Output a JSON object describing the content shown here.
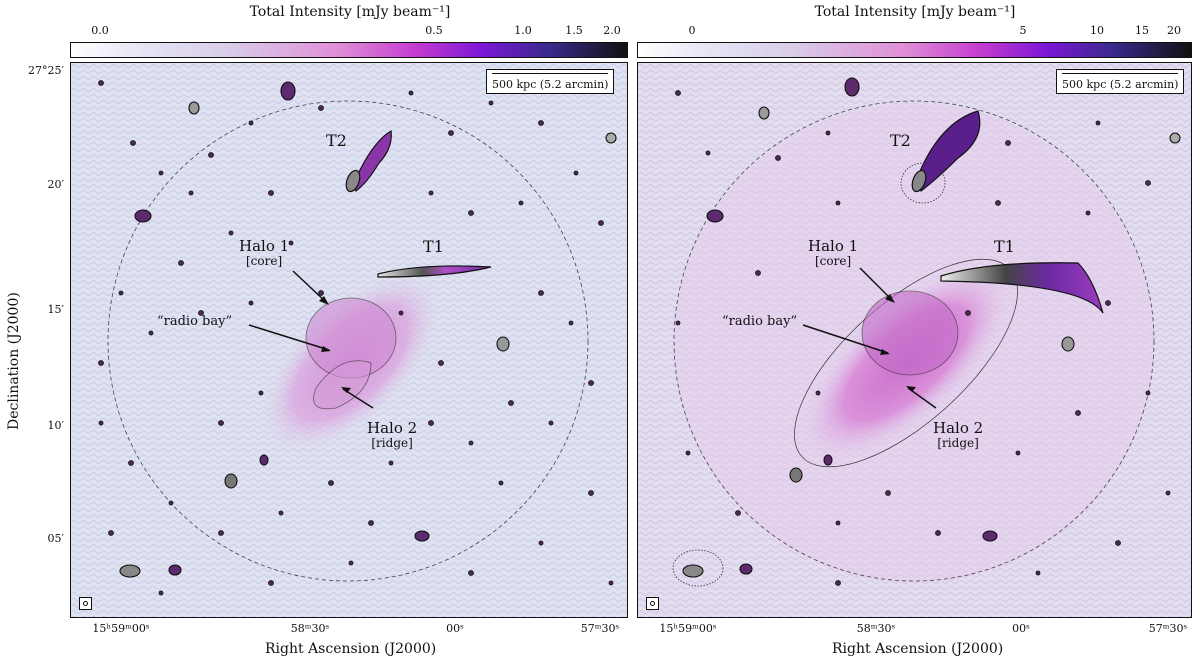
{
  "left_panel": {
    "colorbar_title": "Total Intensity [mJy beam⁻¹]",
    "colorbar_ticks": [
      "0.0",
      "0.5",
      "1.0",
      "1.5",
      "2.0"
    ],
    "scale_label": "500 kpc (5.2 arcmin)",
    "annotations": {
      "t2": "T2",
      "t1": "T1",
      "halo1": "Halo 1",
      "halo1_sub": "[core]",
      "radio_bay": "“radio bay”",
      "halo2": "Halo 2",
      "halo2_sub": "[ridge]"
    }
  },
  "right_panel": {
    "colorbar_title": "Total Intensity [mJy beam⁻¹]",
    "colorbar_ticks": [
      "0",
      "5",
      "10",
      "15",
      "20"
    ],
    "scale_label": "500 kpc (5.2 arcmin)",
    "annotations": {
      "t2": "T2",
      "t1": "T1",
      "halo1": "Halo 1",
      "halo1_sub": "[core]",
      "radio_bay": "“radio bay”",
      "halo2": "Halo 2",
      "halo2_sub": "[ridge]"
    }
  },
  "axes": {
    "ylabel": "Declination (J2000)",
    "xlabel": "Right Ascension (J2000)",
    "yticks": [
      "27°25′",
      "20′",
      "15′",
      "10′",
      "05′"
    ],
    "xticks": [
      "15ʰ59ᵐ00ˢ",
      "58ᵐ30ˢ",
      "00ˢ",
      "57ᵐ30ˢ"
    ]
  },
  "colors": {
    "background": "#dde0f0",
    "halo": "#d98fd6",
    "source": "#6a2a78",
    "contour": "#111111"
  }
}
